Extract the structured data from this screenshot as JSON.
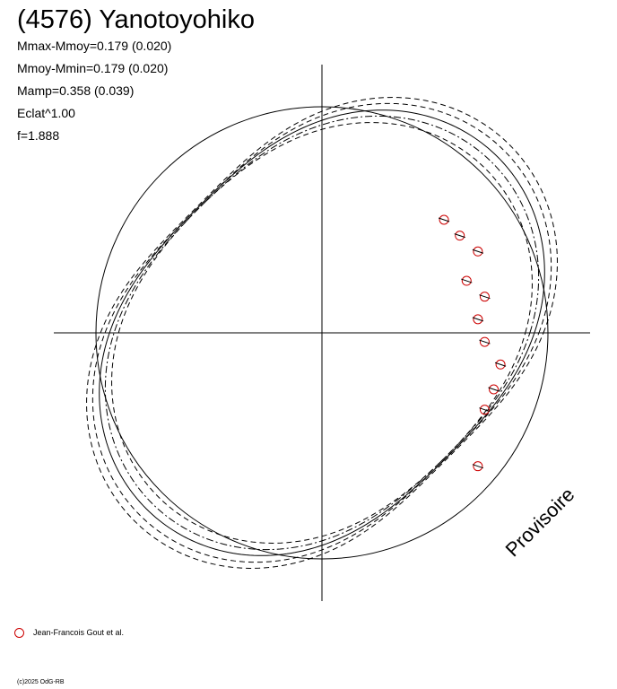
{
  "header": {
    "title": "(4576) Yanotoyohiko",
    "stats": [
      "Mmax-Mmoy=0.179 (0.020)",
      "Mmoy-Mmin=0.179 (0.020)",
      "Mamp=0.358 (0.039)",
      "Eclat^1.00",
      "f=1.888"
    ]
  },
  "legend": {
    "label": "Jean-Francois Gout et al."
  },
  "footer": {
    "copyright": "(c)2025 OdG-RB",
    "stamp": "Provisoire"
  },
  "colors": {
    "axes": "#000000",
    "curves": "#000000",
    "observations": "#cc0000"
  },
  "chart_data": {
    "type": "scatter",
    "title": "(4576) Yanotoyohiko",
    "xlabel": "",
    "ylabel": "",
    "grid": false,
    "legend_position": "bottom-left",
    "reference_circle": {
      "radius": 1.0
    },
    "model_curves": [
      {
        "style": "solid",
        "amp": 0.32,
        "offset": -0.06
      },
      {
        "style": "dashdot",
        "amp": 0.29,
        "offset": -0.08
      },
      {
        "style": "dashed",
        "amp": 0.36,
        "offset": -0.04
      },
      {
        "style": "dashed",
        "amp": 0.25,
        "offset": -0.1
      },
      {
        "style": "dashed",
        "amp": 0.39,
        "offset": -0.02
      }
    ],
    "series": [
      {
        "name": "Jean-Francois Gout et al.",
        "marker": "circle",
        "points": [
          {
            "x": 0.54,
            "y": 0.5
          },
          {
            "x": 0.61,
            "y": 0.43
          },
          {
            "x": 0.69,
            "y": 0.36
          },
          {
            "x": 0.64,
            "y": 0.23
          },
          {
            "x": 0.72,
            "y": 0.16
          },
          {
            "x": 0.69,
            "y": 0.06
          },
          {
            "x": 0.72,
            "y": -0.04
          },
          {
            "x": 0.79,
            "y": -0.14
          },
          {
            "x": 0.76,
            "y": -0.25
          },
          {
            "x": 0.72,
            "y": -0.34
          },
          {
            "x": 0.69,
            "y": -0.59
          }
        ]
      }
    ]
  }
}
